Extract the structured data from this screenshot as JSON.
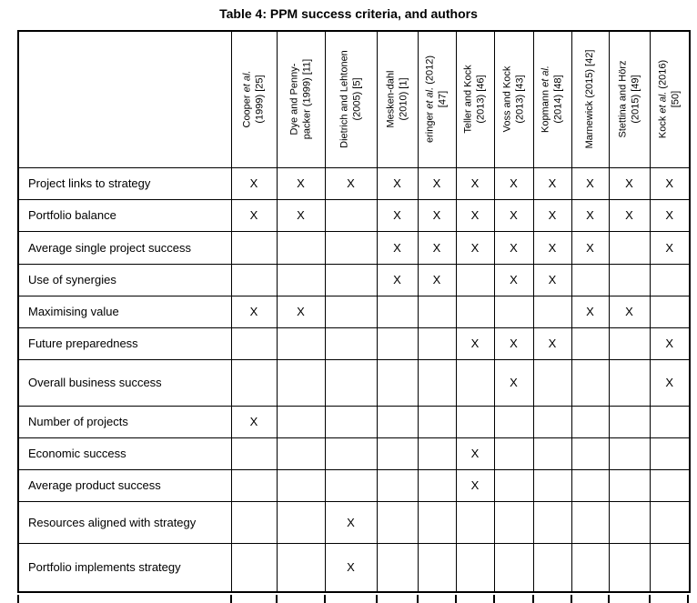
{
  "title": "Table 4: PPM success criteria, and authors",
  "table": {
    "mark": "X",
    "authors": [
      {
        "name_pre": "Cooper ",
        "name_italic": "et al.",
        "name_post": "",
        "line2": "(1999) [25]"
      },
      {
        "name_pre": "Dye and Penny-",
        "name_italic": "",
        "name_post": "",
        "line2": "packer (1999) [11]"
      },
      {
        "name_pre": "Dietrich and Lehtonen",
        "name_italic": "",
        "name_post": "",
        "line2": "(2005) [5]"
      },
      {
        "name_pre": "Mesken-dahl",
        "name_italic": "",
        "name_post": "",
        "line2": "(2010) [1]"
      },
      {
        "name_pre": "eringer ",
        "name_italic": "et al.",
        "name_post": " (2012)",
        "line2": "[47]"
      },
      {
        "name_pre": "Teller and Kock",
        "name_italic": "",
        "name_post": "",
        "line2": "(2013) [46]"
      },
      {
        "name_pre": "Voss and Kock",
        "name_italic": "",
        "name_post": "",
        "line2": "(2013) [43]"
      },
      {
        "name_pre": "Kopmann ",
        "name_italic": "et al.",
        "name_post": "",
        "line2": "(2014) [48]"
      },
      {
        "name_pre": "Marnewick (2015) [42]",
        "name_italic": "",
        "name_post": "",
        "line2": ""
      },
      {
        "name_pre": "Stettina and Hörz",
        "name_italic": "",
        "name_post": "",
        "line2": "(2015) [49]"
      },
      {
        "name_pre": "Kock ",
        "name_italic": "et al.",
        "name_post": " (2016)",
        "line2": "[50]"
      }
    ],
    "rows": [
      {
        "label": "Project links to strategy",
        "marks": [
          1,
          1,
          1,
          1,
          1,
          1,
          1,
          1,
          1,
          1,
          1
        ]
      },
      {
        "label": "Portfolio balance",
        "marks": [
          1,
          1,
          0,
          1,
          1,
          1,
          1,
          1,
          1,
          1,
          1
        ]
      },
      {
        "label": "Average single project success",
        "marks": [
          0,
          0,
          0,
          1,
          1,
          1,
          1,
          1,
          1,
          0,
          1
        ]
      },
      {
        "label": "Use of synergies",
        "marks": [
          0,
          0,
          0,
          1,
          1,
          0,
          1,
          1,
          0,
          0,
          0
        ]
      },
      {
        "label": "Maximising value",
        "marks": [
          1,
          1,
          0,
          0,
          0,
          0,
          0,
          0,
          1,
          1,
          0
        ]
      },
      {
        "label": "Future preparedness",
        "marks": [
          0,
          0,
          0,
          0,
          0,
          1,
          1,
          1,
          0,
          0,
          1
        ]
      },
      {
        "label": "Overall business success",
        "marks": [
          0,
          0,
          0,
          0,
          0,
          0,
          1,
          0,
          0,
          0,
          1
        ]
      },
      {
        "label": "Number of projects",
        "marks": [
          1,
          0,
          0,
          0,
          0,
          0,
          0,
          0,
          0,
          0,
          0
        ]
      },
      {
        "label": "Economic success",
        "marks": [
          0,
          0,
          0,
          0,
          0,
          1,
          0,
          0,
          0,
          0,
          0
        ]
      },
      {
        "label": "Average product success",
        "marks": [
          0,
          0,
          0,
          0,
          0,
          1,
          0,
          0,
          0,
          0,
          0
        ]
      },
      {
        "label": "Resources aligned with strategy",
        "marks": [
          0,
          0,
          1,
          0,
          0,
          0,
          0,
          0,
          0,
          0,
          0
        ]
      },
      {
        "label": "Portfolio implements strategy",
        "marks": [
          0,
          0,
          1,
          0,
          0,
          0,
          0,
          0,
          0,
          0,
          0
        ]
      }
    ]
  },
  "colors": {
    "text": "#000000",
    "border": "#000000",
    "background": "#ffffff"
  }
}
